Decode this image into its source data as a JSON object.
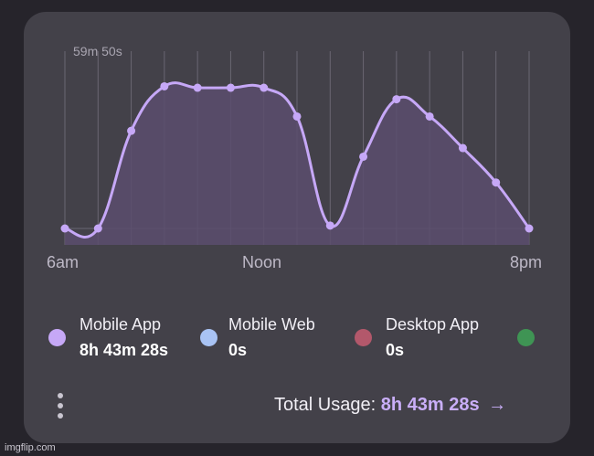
{
  "chart_data": {
    "type": "area",
    "title": "",
    "ymax_label": "59m 50s",
    "x_tick_labels": [
      "6am",
      "Noon",
      "8pm"
    ],
    "series": [
      {
        "name": "Mobile App",
        "color": "#c6a8f7",
        "x": [
          0,
          1,
          2,
          3,
          4,
          5,
          6,
          7,
          8,
          9,
          10,
          11,
          12,
          13,
          14
        ],
        "values_minutes": [
          0,
          0,
          34,
          49.5,
          49,
          49,
          49,
          39,
          1,
          25,
          45,
          39,
          28,
          16,
          0
        ]
      }
    ],
    "ylim_minutes": [
      0,
      59.83
    ],
    "grid": "vertical"
  },
  "legend": [
    {
      "name": "Mobile App",
      "value": "8h 43m 28s",
      "color": "#c6a8f7"
    },
    {
      "name": "Mobile Web",
      "value": "0s",
      "color": "#a9c3f4"
    },
    {
      "name": "Desktop App",
      "value": "0s",
      "color": "#b3586b"
    },
    {
      "name": "",
      "value": "",
      "color": "#3f9454"
    }
  ],
  "footer": {
    "total_label": "Total Usage:",
    "total_value": "8h 43m 28s",
    "arrow": "→"
  },
  "watermark": "imgflip.com"
}
